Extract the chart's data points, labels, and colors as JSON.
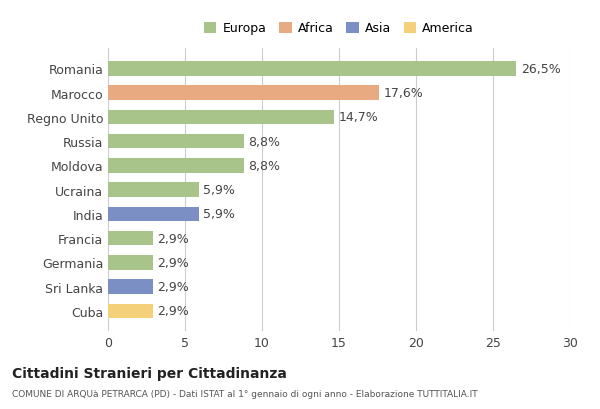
{
  "countries": [
    "Romania",
    "Marocco",
    "Regno Unito",
    "Russia",
    "Moldova",
    "Ucraina",
    "India",
    "Francia",
    "Germania",
    "Sri Lanka",
    "Cuba"
  ],
  "values": [
    26.5,
    17.6,
    14.7,
    8.8,
    8.8,
    5.9,
    5.9,
    2.9,
    2.9,
    2.9,
    2.9
  ],
  "labels": [
    "26,5%",
    "17,6%",
    "14,7%",
    "8,8%",
    "8,8%",
    "5,9%",
    "5,9%",
    "2,9%",
    "2,9%",
    "2,9%",
    "2,9%"
  ],
  "continents": [
    "Europa",
    "Africa",
    "Europa",
    "Europa",
    "Europa",
    "Europa",
    "Asia",
    "Europa",
    "Europa",
    "Asia",
    "America"
  ],
  "colors": {
    "Europa": "#a8c48a",
    "Africa": "#e8aa80",
    "Asia": "#7b8fc4",
    "America": "#f5d07a"
  },
  "legend_order": [
    "Europa",
    "Africa",
    "Asia",
    "America"
  ],
  "xlim": [
    0,
    30
  ],
  "xticks": [
    0,
    5,
    10,
    15,
    20,
    25,
    30
  ],
  "title": "Cittadini Stranieri per Cittadinanza",
  "subtitle": "COMUNE DI ARQUà PETRARCA (PD) - Dati ISTAT al 1° gennaio di ogni anno - Elaborazione TUTTITALIA.IT",
  "bg_color": "#ffffff",
  "grid_color": "#cccccc",
  "bar_height": 0.6,
  "text_color": "#444444",
  "label_fontsize": 9,
  "tick_fontsize": 9
}
